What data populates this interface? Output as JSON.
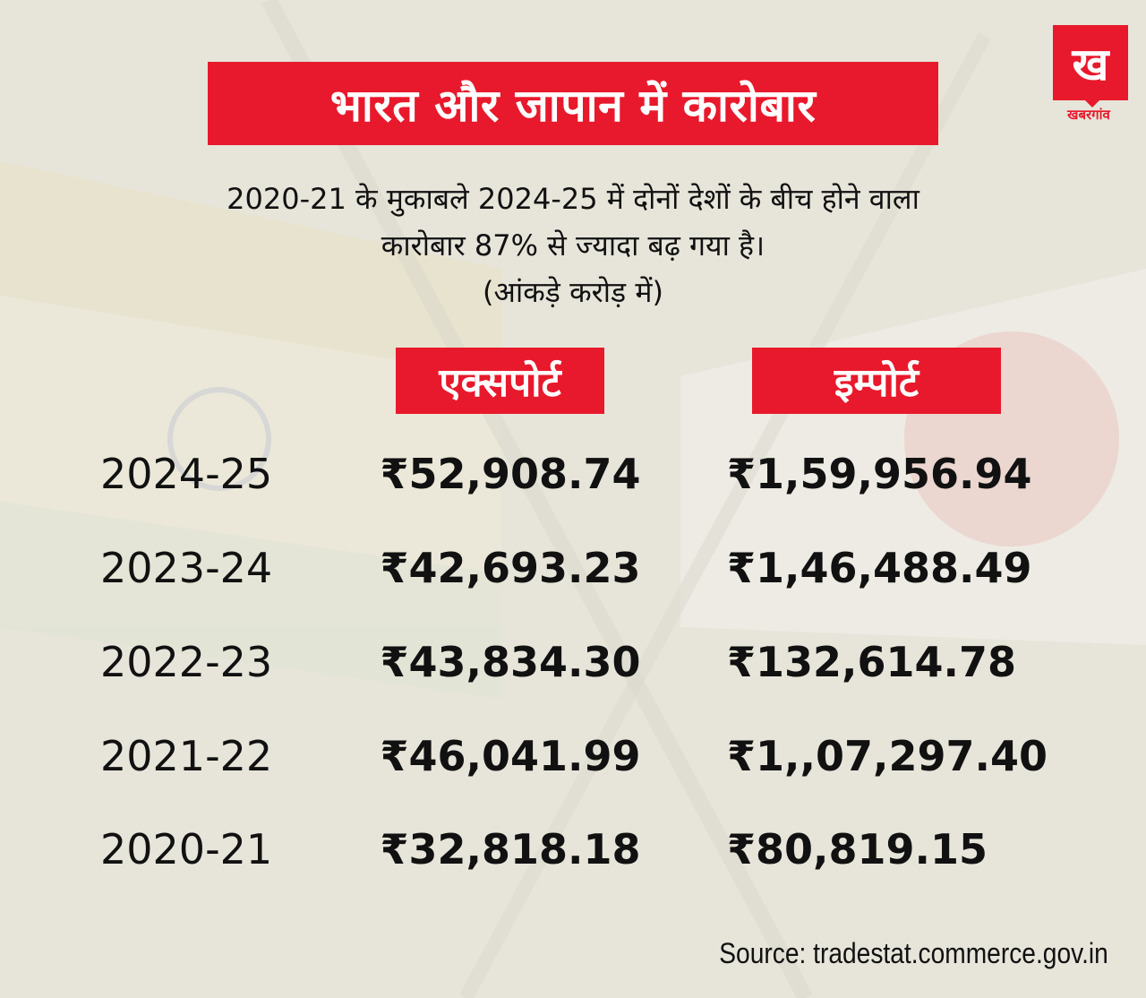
{
  "title": "भारत और जापान में कारोबार",
  "logo": {
    "mark": "ख",
    "name": "खबरगांव"
  },
  "subtitle": {
    "line1": "2020-21 के मुकाबले 2024-25 में दोनों देशों के बीच होने वाला",
    "line2": "कारोबार 87% से ज्यादा बढ़ गया है।",
    "line3": "(आंकड़े करोड़ में)"
  },
  "chart_data": {
    "type": "table",
    "columns": [
      "एक्सपोर्ट",
      "इम्पोर्ट"
    ],
    "rows": [
      {
        "year": "2024-25",
        "export": "₹52,908.74",
        "import": "₹1,59,956.94"
      },
      {
        "year": "2023-24",
        "export": "₹42,693.23",
        "import": "₹1,46,488.49"
      },
      {
        "year": "2022-23",
        "export": "₹43,834.30",
        "import": "₹132,614.78"
      },
      {
        "year": "2021-22",
        "export": "₹46,041.99",
        "import": "₹1,,07,297.40"
      },
      {
        "year": "2020-21",
        "export": "₹32,818.18",
        "import": "₹80,819.15"
      }
    ]
  },
  "source": "Source: tradestat.commerce.gov.in",
  "colors": {
    "accent": "#e8192c",
    "background": "#e8e6dc"
  }
}
